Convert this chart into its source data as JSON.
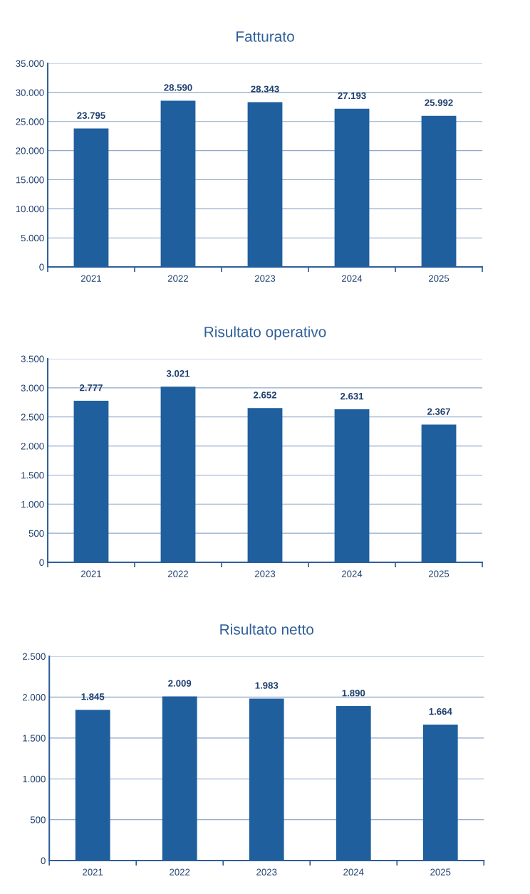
{
  "chart_data": [
    {
      "type": "bar",
      "title": "Fatturato",
      "categories": [
        "2021",
        "2022",
        "2023",
        "2024",
        "2025"
      ],
      "values": [
        23795,
        28590,
        28343,
        27193,
        25992
      ],
      "value_labels": [
        "23.795",
        "28.590",
        "28.343",
        "27.193",
        "25.992"
      ],
      "color": "#1f5f9e",
      "ylim": [
        0,
        35000
      ],
      "yticks": [
        0,
        {
          "value": 5000,
          "label": "5.000"
        },
        {
          "value": 10000,
          "label": "10.000"
        },
        {
          "value": 15000,
          "label": "15.000"
        },
        {
          "value": 20000,
          "label": "20.000"
        },
        {
          "value": 25000,
          "label": "25.000"
        },
        {
          "value": 30000,
          "label": "30.000"
        },
        {
          "value": 35000,
          "label": "35.000"
        }
      ],
      "grid": "y",
      "legend": false
    },
    {
      "type": "bar",
      "title": "Risultato operativo",
      "categories": [
        "2021",
        "2022",
        "2023",
        "2024",
        "2025"
      ],
      "values": [
        2777,
        3021,
        2652,
        2631,
        2367
      ],
      "value_labels": [
        "2.777",
        "3.021",
        "2.652",
        "2.631",
        "2.367"
      ],
      "color": "#1f5f9e",
      "ylim": [
        0,
        3500
      ],
      "yticks": [
        0,
        500,
        {
          "value": 1000,
          "label": "1.000"
        },
        {
          "value": 1500,
          "label": "1.500"
        },
        {
          "value": 2000,
          "label": "2.000"
        },
        {
          "value": 2500,
          "label": "2.500"
        },
        {
          "value": 3000,
          "label": "3.000"
        },
        {
          "value": 3500,
          "label": "3.500"
        }
      ],
      "grid": "y",
      "legend": false
    },
    {
      "type": "bar",
      "title": "Risultato netto",
      "categories": [
        "2021",
        "2022",
        "2023",
        "2024",
        "2025"
      ],
      "values": [
        1845,
        2009,
        1983,
        1890,
        1664
      ],
      "value_labels": [
        "1.845",
        "2.009",
        "1.983",
        "1.890",
        "1.664"
      ],
      "color": "#1f5f9e",
      "ylim": [
        0,
        2500
      ],
      "yticks": [
        0,
        500,
        {
          "value": 1000,
          "label": "1.000"
        },
        {
          "value": 1500,
          "label": "1.500"
        },
        {
          "value": 2000,
          "label": "2.000"
        },
        {
          "value": 2500,
          "label": "2.500"
        }
      ],
      "grid": "y",
      "legend": false
    }
  ]
}
